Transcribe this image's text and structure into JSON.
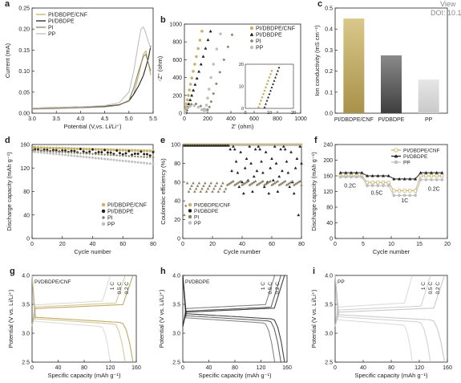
{
  "header": {
    "view_label": "View",
    "doi_text": "DOI: 10.1039/"
  },
  "colors": {
    "cnf": "#C8B26A",
    "cnf_dark": "#B29C4E",
    "dbdpe": "#222222",
    "pi": "#8E8066",
    "pp": "#BFBFBF"
  },
  "chart_data": [
    {
      "panel": "a",
      "type": "line",
      "xlabel": "Potential (V,vs. Li/Li⁺)",
      "ylabel": "Current (mA)",
      "xlim": [
        3.0,
        5.5
      ],
      "ylim": [
        0.0,
        0.25
      ],
      "xticks": [
        "3.0",
        "3.5",
        "4.0",
        "4.5",
        "5.0",
        "5.5"
      ],
      "yticks": [
        "0.00",
        "0.05",
        "0.10",
        "0.15",
        "0.20",
        "0.25"
      ],
      "legend_position": "top-left",
      "series": [
        {
          "name": "PI/DBDPE/CNF",
          "color_key": "cnf",
          "x": [
            3.0,
            3.5,
            4.0,
            4.5,
            4.8,
            5.0,
            5.1,
            5.2,
            5.3,
            5.35,
            5.4,
            5.45
          ],
          "y": [
            0.012,
            0.014,
            0.015,
            0.017,
            0.02,
            0.028,
            0.045,
            0.09,
            0.14,
            0.148,
            0.12,
            0.09
          ]
        },
        {
          "name": "PI/DBDPE",
          "color_key": "dbdpe",
          "x": [
            3.0,
            3.5,
            4.0,
            4.5,
            4.8,
            5.0,
            5.1,
            5.2,
            5.3,
            5.4,
            5.45
          ],
          "y": [
            0.012,
            0.013,
            0.015,
            0.016,
            0.02,
            0.03,
            0.045,
            0.065,
            0.09,
            0.13,
            0.16
          ]
        },
        {
          "name": "PI",
          "color_key": "pi",
          "x": [
            3.0,
            3.5,
            4.0,
            4.5,
            4.8,
            5.0,
            5.1,
            5.2,
            5.3,
            5.35,
            5.4,
            5.45
          ],
          "y": [
            0.01,
            0.011,
            0.013,
            0.015,
            0.019,
            0.03,
            0.06,
            0.1,
            0.135,
            0.14,
            0.12,
            0.1
          ]
        },
        {
          "name": "PP",
          "color_key": "pp",
          "x": [
            3.0,
            3.5,
            4.0,
            4.5,
            4.8,
            5.0,
            5.1,
            5.2,
            5.25,
            5.3,
            5.35,
            5.4,
            5.45
          ],
          "y": [
            0.012,
            0.013,
            0.015,
            0.018,
            0.025,
            0.05,
            0.1,
            0.17,
            0.2,
            0.205,
            0.19,
            0.17,
            0.155
          ]
        }
      ]
    },
    {
      "panel": "b",
      "type": "scatter",
      "xlabel": "Z' (ohm)",
      "ylabel": "-Z'' (ohm)",
      "xlim": [
        0,
        1000
      ],
      "ylim": [
        0,
        1000
      ],
      "xticks": [
        "0",
        "200",
        "400",
        "600",
        "800",
        "1000"
      ],
      "yticks": [
        "0",
        "200",
        "400",
        "600",
        "800",
        "1000"
      ],
      "legend_position": "top-right",
      "series": [
        {
          "name": "PI/DBDPE/CNF",
          "color_key": "cnf",
          "marker": "circle",
          "x": [
            5,
            7,
            10,
            14,
            19,
            26,
            34,
            43,
            53,
            64,
            76,
            89,
            103,
            118,
            134,
            151
          ],
          "y": [
            5,
            20,
            40,
            70,
            105,
            150,
            200,
            260,
            325,
            395,
            470,
            550,
            635,
            725,
            820,
            920
          ]
        },
        {
          "name": "PI/DBDPE",
          "color_key": "dbdpe",
          "marker": "triangle",
          "x": [
            10,
            15,
            20,
            28,
            38,
            50,
            63,
            77,
            92,
            108,
            125,
            143,
            162,
            182,
            203,
            225
          ],
          "y": [
            4,
            18,
            38,
            68,
            105,
            150,
            200,
            258,
            322,
            392,
            468,
            550,
            637,
            728,
            823,
            920
          ]
        },
        {
          "name": "PI",
          "color_key": "pi",
          "marker": "diamond",
          "x": [
            5,
            12,
            30,
            60,
            100,
            140,
            170,
            185,
            200,
            215,
            230,
            250,
            275,
            305,
            340,
            375,
            410
          ],
          "y": [
            5,
            30,
            70,
            100,
            105,
            80,
            45,
            35,
            40,
            70,
            130,
            220,
            330,
            460,
            600,
            745,
            880
          ]
        },
        {
          "name": "PP",
          "color_key": "pp",
          "marker": "circle",
          "x": [
            5,
            10,
            25,
            50,
            85,
            120,
            150,
            168,
            180,
            190,
            200,
            212,
            228,
            250,
            278,
            310
          ],
          "y": [
            5,
            25,
            55,
            80,
            85,
            68,
            40,
            30,
            42,
            90,
            170,
            270,
            400,
            550,
            720,
            890
          ]
        }
      ],
      "inset": {
        "xlim": [
          0,
          20
        ],
        "ylim": [
          0,
          20
        ],
        "xticks": [
          "0",
          "10",
          "20"
        ],
        "yticks": [
          "0",
          "10",
          "20"
        ],
        "series": [
          {
            "color_key": "cnf",
            "x": [
              5.5,
              6,
              6.5,
              7,
              7.5,
              8,
              8.5,
              9,
              9.5,
              10,
              10.5,
              11
            ],
            "y": [
              0.5,
              2,
              3.5,
              5,
              6.5,
              8,
              9.5,
              11,
              12.5,
              14,
              15.5,
              17
            ]
          },
          {
            "color_key": "dbdpe",
            "x": [
              8,
              8.5,
              9,
              9.5,
              10,
              10.5,
              11,
              11.5,
              12,
              12.5,
              13,
              13.5,
              14
            ],
            "y": [
              0.5,
              2,
              3.5,
              5,
              6.5,
              8,
              9.5,
              11,
              12.5,
              14,
              15.5,
              17,
              18.5
            ]
          }
        ]
      }
    },
    {
      "panel": "c",
      "type": "bar",
      "ylabel": "Ion conductivity (mS cm⁻¹)",
      "categories": [
        "PI/DBDPE/CNF",
        "PI/DBDPE",
        "PP"
      ],
      "values": [
        0.45,
        0.275,
        0.16
      ],
      "color_keys": [
        "cnf",
        "dbdpe",
        "pp"
      ],
      "ylim": [
        0.0,
        0.5
      ],
      "yticks": [
        "0.0",
        "0.1",
        "0.2",
        "0.3",
        "0.4",
        "0.5"
      ]
    },
    {
      "panel": "d",
      "type": "scatter",
      "xlabel": "Cycle number",
      "ylabel": "Discharge capacity (mAh g⁻¹)",
      "xlim": [
        0,
        80
      ],
      "ylim": [
        0,
        160
      ],
      "xticks": [
        "0",
        "20",
        "40",
        "60",
        "80"
      ],
      "yticks": [
        "0",
        "40",
        "80",
        "120",
        "160"
      ],
      "legend_position": "bottom-right",
      "series": [
        {
          "name": "PI/DBDPE/CNF",
          "color_key": "cnf",
          "y_start": 155,
          "y_end": 149
        },
        {
          "name": "PI/DBDPE",
          "color_key": "dbdpe",
          "y_start": 152,
          "y_end": 143
        },
        {
          "name": "PI",
          "color_key": "pi",
          "y_start": 150,
          "y_end": 138
        },
        {
          "name": "PP",
          "color_key": "pp",
          "y_start": 148,
          "y_end": 127
        }
      ]
    },
    {
      "panel": "e",
      "type": "scatter",
      "xlabel": "Cycle number",
      "ylabel": "Coulombic efficiency (%)",
      "xlim": [
        0,
        80
      ],
      "ylim": [
        0,
        100
      ],
      "xticks": [
        "0",
        "20",
        "40",
        "60",
        "80"
      ],
      "yticks": [
        "0",
        "20",
        "40",
        "60",
        "80",
        "100"
      ],
      "legend_position": "bottom-left",
      "series": [
        {
          "name": "PI/DBDPE/CNF",
          "color_key": "cnf"
        },
        {
          "name": "PI/DBDPE",
          "color_key": "dbdpe"
        },
        {
          "name": "PI",
          "color_key": "pi"
        },
        {
          "name": "PP",
          "color_key": "pp"
        }
      ]
    },
    {
      "panel": "f",
      "type": "line",
      "xlabel": "Cycle number",
      "ylabel": "Discharge capacity (mAh g⁻¹)",
      "xlim": [
        0,
        21
      ],
      "ylim": [
        0,
        240
      ],
      "xticks": [
        "0",
        "5",
        "10",
        "15",
        "20"
      ],
      "yticks": [
        "0",
        "40",
        "80",
        "120",
        "160",
        "200",
        "240"
      ],
      "legend_position": "top-right",
      "rate_labels": [
        "0.2C",
        "0.5C",
        "1C",
        "0.2C"
      ],
      "series": [
        {
          "name": "PI/DBDPE/CNF",
          "color_key": "cnf",
          "marker": "square",
          "steps": [
            160,
            143,
            122,
            160
          ]
        },
        {
          "name": "PI/DBDPE",
          "color_key": "dbdpe",
          "marker": "triangle",
          "steps": [
            168,
            160,
            152,
            168
          ]
        },
        {
          "name": "PP",
          "color_key": "pp",
          "marker": "circle",
          "steps": [
            157,
            135,
            110,
            150
          ]
        }
      ]
    },
    {
      "panel": "g",
      "type": "line",
      "sample": "PI/DBDPE/CNF",
      "xlabel": "Specific capacity (mAh g⁻¹)",
      "ylabel": "Potential (V vs. Li/Li⁺)",
      "xlim": [
        0,
        160
      ],
      "ylim": [
        2.5,
        4.2
      ],
      "xticks": [
        "0",
        "40",
        "80",
        "120",
        "160"
      ],
      "yticks": [
        "2.5",
        "3.0",
        "3.5",
        "4.0"
      ],
      "rates": [
        "0.2 C",
        "0.5 C",
        "1 C"
      ],
      "rate_color_keys": [
        "cnf_dark",
        "cnf",
        "pp"
      ],
      "capacities": [
        155,
        143,
        120
      ],
      "charge_plateau": [
        3.55,
        3.58,
        3.62
      ],
      "discharge_plateau": [
        3.35,
        3.32,
        3.27
      ]
    },
    {
      "panel": "h",
      "type": "line",
      "sample": "PI/DBDPE",
      "xlabel": "Specific capacity (mAh g⁻¹)",
      "ylabel": "Potential (V vs. Li/Li⁺)",
      "xlim": [
        0,
        170
      ],
      "ylim": [
        2.5,
        4.2
      ],
      "xticks": [
        "0",
        "40",
        "80",
        "120",
        "160"
      ],
      "yticks": [
        "2.5",
        "3.0",
        "3.5",
        "4.0"
      ],
      "rates": [
        "0.2 C",
        "0.5 C",
        "1 C"
      ],
      "rate_color_keys": [
        "dbdpe",
        "dbdpe",
        "dbdpe"
      ],
      "capacities": [
        166,
        160,
        150
      ],
      "charge_plateau": [
        3.48,
        3.5,
        3.55
      ],
      "discharge_plateau": [
        3.42,
        3.38,
        3.34
      ]
    },
    {
      "panel": "i",
      "type": "line",
      "sample": "PP",
      "xlabel": "Specific capacity (mAh g⁻¹)",
      "ylabel": "Potential (V vs. Li/Li⁺)",
      "xlim": [
        0,
        160
      ],
      "ylim": [
        2.5,
        4.2
      ],
      "xticks": [
        "0",
        "40",
        "80",
        "120",
        "160"
      ],
      "yticks": [
        "2.5",
        "3.0",
        "3.5",
        "4.0"
      ],
      "rates": [
        "0.2 C",
        "0.5 C",
        "1 C"
      ],
      "rate_color_keys": [
        "pp",
        "pp",
        "pp"
      ],
      "capacities": [
        156,
        136,
        110
      ],
      "charge_plateau": [
        3.48,
        3.52,
        3.58
      ],
      "discharge_plateau": [
        3.4,
        3.36,
        3.3
      ]
    }
  ]
}
